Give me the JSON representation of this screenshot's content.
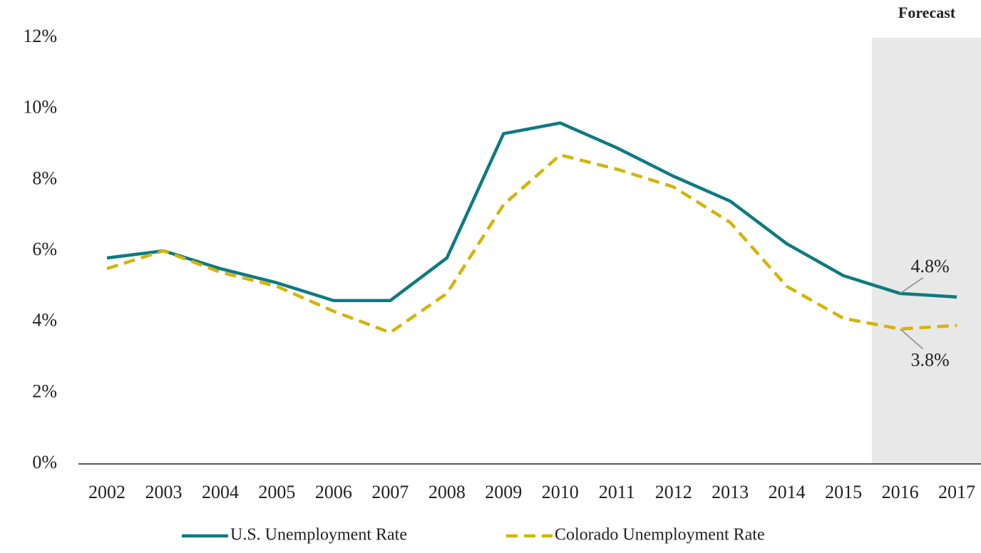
{
  "chart_data": {
    "type": "line",
    "categories": [
      "2002",
      "2003",
      "2004",
      "2005",
      "2006",
      "2007",
      "2008",
      "2009",
      "2010",
      "2011",
      "2012",
      "2013",
      "2014",
      "2015",
      "2016",
      "2017"
    ],
    "series": [
      {
        "name": "U.S. Unemployment Rate",
        "color": "#0e7a80",
        "dash": false,
        "values": [
          5.8,
          6.0,
          5.5,
          5.1,
          4.6,
          4.6,
          5.8,
          9.3,
          9.6,
          8.9,
          8.1,
          7.4,
          6.2,
          5.3,
          4.8,
          4.7
        ],
        "value_labels": [
          null,
          null,
          null,
          null,
          null,
          null,
          null,
          null,
          null,
          null,
          null,
          null,
          null,
          null,
          "4.8%",
          null
        ]
      },
      {
        "name": "Colorado Unemployment Rate",
        "color": "#d4b40a",
        "dash": true,
        "values": [
          5.5,
          6.0,
          5.4,
          5.0,
          4.3,
          3.7,
          4.8,
          7.3,
          8.7,
          8.3,
          7.8,
          6.8,
          5.0,
          4.1,
          3.8,
          3.9
        ],
        "value_labels": [
          null,
          null,
          null,
          null,
          null,
          null,
          null,
          null,
          null,
          null,
          null,
          null,
          null,
          null,
          "3.8%",
          null
        ]
      }
    ],
    "ylim": [
      0,
      12
    ],
    "yticks": [
      {
        "value": 0,
        "label": "0%"
      },
      {
        "value": 2,
        "label": "2%"
      },
      {
        "value": 4,
        "label": "4%"
      },
      {
        "value": 6,
        "label": "6%"
      },
      {
        "value": 8,
        "label": "8%"
      },
      {
        "value": 10,
        "label": "10%"
      },
      {
        "value": 12,
        "label": "12%"
      }
    ],
    "grid": false,
    "legend": "bottom",
    "forecast": {
      "label": "Forecast",
      "from": "2016"
    }
  }
}
